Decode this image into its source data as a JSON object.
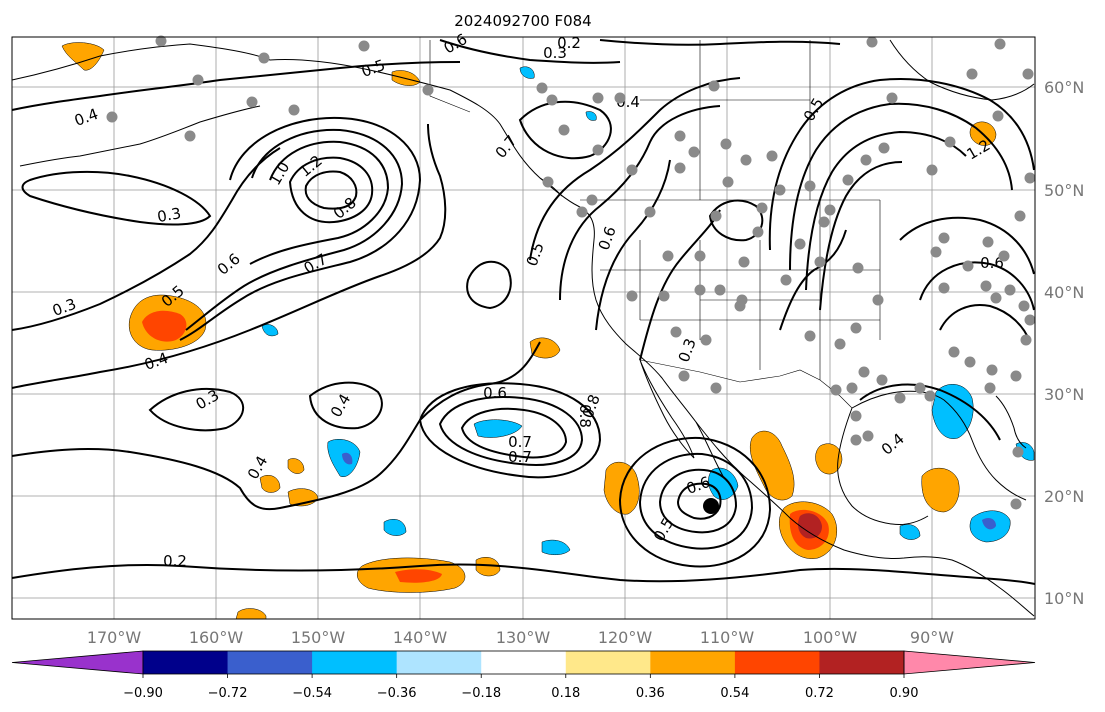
{
  "title": "2024092700 F084",
  "lon_labels": [
    "170°W",
    "160°W",
    "150°W",
    "140°W",
    "130°W",
    "120°W",
    "110°W",
    "100°W",
    "90°W"
  ],
  "lat_labels": [
    "60°N",
    "50°N",
    "40°N",
    "30°N",
    "20°N",
    "10°N"
  ],
  "colorbar": {
    "tick_labels": [
      "−0.90",
      "−0.72",
      "−0.54",
      "−0.36",
      "−0.18",
      "0.18",
      "0.36",
      "0.54",
      "0.72",
      "0.90"
    ],
    "colors": [
      "#9932cc",
      "#00008b",
      "#3a5fcd",
      "#00bfff",
      "#aee4ff",
      "#ffffff",
      "#ffe88a",
      "#ffa500",
      "#ff4500",
      "#b22222",
      "#ff88aa"
    ]
  },
  "contour_labels": [
    "0.2",
    "0.3",
    "0.4",
    "0.5",
    "0.6",
    "0.7",
    "0.8",
    "1.0",
    "1.2",
    "0.2",
    "0.3",
    "0.4",
    "0.5",
    "0.6",
    "0.7",
    "0.8",
    "1.2",
    "0.3",
    "0.4",
    "0.5",
    "0.6",
    "0.7",
    "0.8",
    "0.4",
    "0.5",
    "0.6",
    "0.3",
    "0.4",
    "0.6",
    "0.7",
    "0.3",
    "0.4",
    "0.5",
    "0.6"
  ],
  "shading_colors": {
    "orange": "#ffa500",
    "red": "#ff4500",
    "darkred": "#b22222",
    "blue": "#00bfff",
    "navy": "#3a5fcd"
  }
}
